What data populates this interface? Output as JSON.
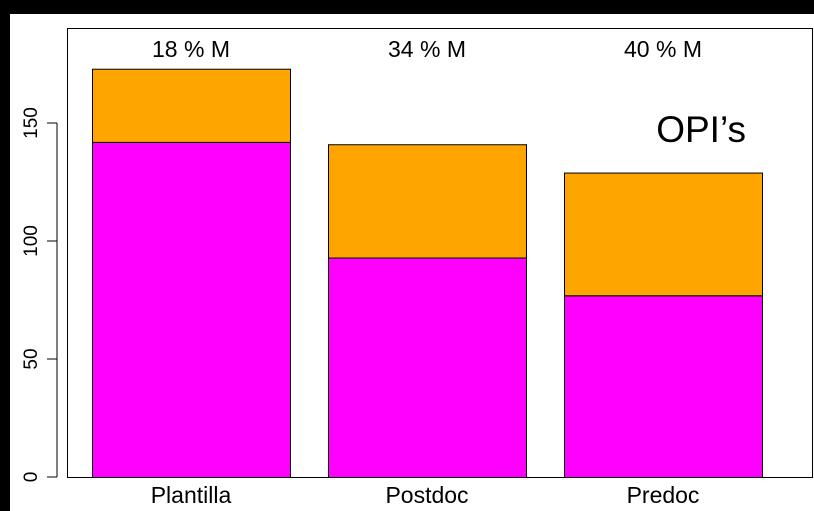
{
  "chart_data": {
    "type": "bar",
    "stacked": true,
    "categories": [
      "Plantilla",
      "Postdoc",
      "Predoc"
    ],
    "series": [
      {
        "values": [
          142,
          93,
          77
        ],
        "color": "#ff00ff"
      },
      {
        "values": [
          31,
          48,
          52
        ],
        "color": "#ffa500"
      }
    ],
    "top_labels": [
      "18 % M",
      "34 % M",
      "40 % M"
    ],
    "annotation": "OPI’s",
    "y_ticks": [
      0,
      50,
      100,
      150
    ],
    "ylim": [
      0,
      180
    ],
    "grid": false,
    "legend": "none"
  }
}
